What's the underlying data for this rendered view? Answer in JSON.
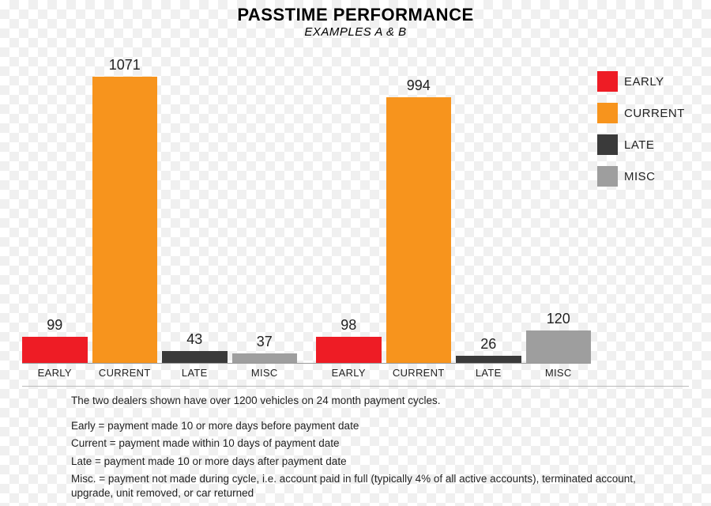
{
  "title": "PASSTIME PERFORMANCE",
  "subtitle": "EXAMPLES A & B",
  "chart": {
    "type": "bar",
    "ymax": 1100,
    "value_fontsize": 18,
    "label_fontsize": 13,
    "categories": [
      "EARLY",
      "CURRENT",
      "LATE",
      "MISC"
    ],
    "category_colors": {
      "EARLY": "#ee1c25",
      "CURRENT": "#f7941d",
      "LATE": "#3a3a3a",
      "MISC": "#9e9e9e"
    },
    "groups": [
      {
        "name": "A",
        "values": {
          "EARLY": 99,
          "CURRENT": 1071,
          "LATE": 43,
          "MISC": 37
        }
      },
      {
        "name": "B",
        "values": {
          "EARLY": 98,
          "CURRENT": 994,
          "LATE": 26,
          "MISC": 120
        }
      }
    ],
    "background_color": "transparent",
    "axis_color": "#999999",
    "text_color": "#222222"
  },
  "legend": {
    "title_fontsize": 15,
    "items": [
      {
        "label": "EARLY",
        "color": "#ee1c25"
      },
      {
        "label": "CURRENT",
        "color": "#f7941d"
      },
      {
        "label": "LATE",
        "color": "#3a3a3a"
      },
      {
        "label": "MISC",
        "color": "#9e9e9e"
      }
    ]
  },
  "notes": {
    "intro": "The two dealers shown have over 1200 vehicles on 24 month payment cycles.",
    "defs": [
      "Early = payment made 10 or more days before payment date",
      "Current = payment made within 10 days of payment date",
      "Late = payment made 10 or more days after payment date",
      "Misc. = payment not made during cycle, i.e. account paid in full (typically 4% of all active accounts), terminated account, upgrade, unit removed, or car returned"
    ]
  }
}
